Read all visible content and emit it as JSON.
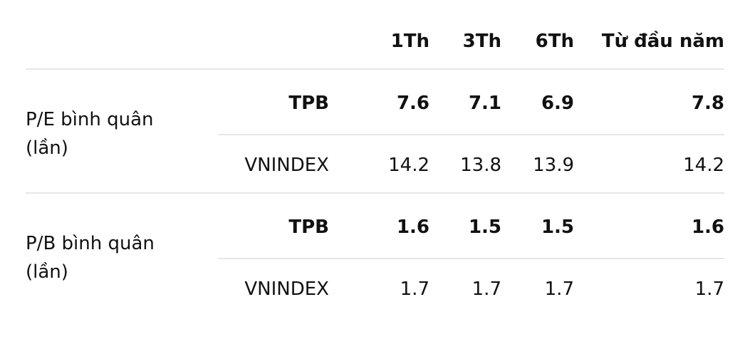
{
  "header": {
    "columns": [
      "1Th",
      "3Th",
      "6Th",
      "Từ đầu năm"
    ]
  },
  "groups": [
    {
      "label": "P/E bình quân (lần)",
      "rows": [
        {
          "name": "TPB",
          "values": [
            "7.6",
            "7.1",
            "6.9",
            "7.8"
          ]
        },
        {
          "name": "VNINDEX",
          "values": [
            "14.2",
            "13.8",
            "13.9",
            "14.2"
          ]
        }
      ]
    },
    {
      "label": "P/B bình quân (lần)",
      "rows": [
        {
          "name": "TPB",
          "values": [
            "1.6",
            "1.5",
            "1.5",
            "1.6"
          ]
        },
        {
          "name": "VNINDEX",
          "values": [
            "1.7",
            "1.7",
            "1.7",
            "1.7"
          ]
        }
      ]
    }
  ]
}
